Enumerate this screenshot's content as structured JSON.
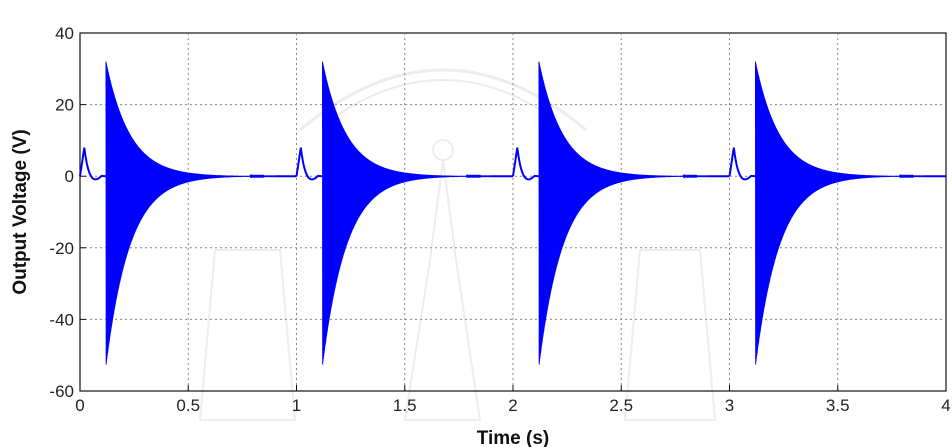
{
  "chart_data": {
    "type": "line",
    "xlabel": "Time (s)",
    "ylabel": "Output Voltage (V)",
    "xlim": [
      0,
      4
    ],
    "ylim": [
      -60,
      40
    ],
    "xticks": [
      0,
      0.5,
      1,
      1.5,
      2,
      2.5,
      3,
      3.5,
      4
    ],
    "xtick_labels": [
      "0",
      "0.5",
      "1",
      "1.5",
      "2",
      "2.5",
      "3",
      "3.5",
      "4"
    ],
    "yticks": [
      -60,
      -40,
      -20,
      0,
      20,
      40
    ],
    "ytick_labels": [
      "-60",
      "-40",
      "-20",
      "0",
      "20",
      "40"
    ],
    "grid": true,
    "series": [
      {
        "color": "#0000ff",
        "pulses": [
          {
            "start": 0.0,
            "bump_peak": 8,
            "bump_peak_time": 0.02,
            "bump_end": 0.1,
            "spike_time": 0.12,
            "spike_max": 32,
            "spike_min": -53,
            "decay_end": 0.9
          },
          {
            "start": 1.0,
            "bump_peak": 8,
            "bump_peak_time": 1.02,
            "bump_end": 1.1,
            "spike_time": 1.12,
            "spike_max": 32,
            "spike_min": -53,
            "decay_end": 1.9
          },
          {
            "start": 2.0,
            "bump_peak": 8,
            "bump_peak_time": 2.02,
            "bump_end": 2.1,
            "spike_time": 2.12,
            "spike_max": 32,
            "spike_min": -53,
            "decay_end": 2.9
          },
          {
            "start": 3.0,
            "bump_peak": 8,
            "bump_peak_time": 3.02,
            "bump_end": 3.1,
            "spike_time": 3.12,
            "spike_max": 32,
            "spike_min": -53,
            "decay_end": 3.9
          }
        ]
      }
    ]
  }
}
